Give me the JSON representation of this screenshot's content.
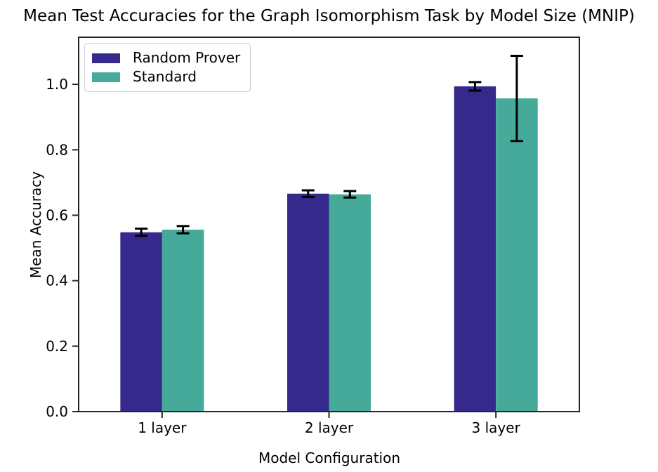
{
  "chart_data": {
    "type": "bar",
    "title": "Mean Test Accuracies for the Graph Isomorphism Task by Model Size (MNIP)",
    "xlabel": "Model Configuration",
    "ylabel": "Mean Accuracy",
    "categories": [
      "1 layer",
      "2 layer",
      "3 layer"
    ],
    "series": [
      {
        "name": "Random Prover",
        "color": "#352a8c",
        "values": [
          0.548,
          0.666,
          0.994
        ],
        "errors": [
          0.011,
          0.01,
          0.013
        ]
      },
      {
        "name": "Standard",
        "color": "#45aa99",
        "values": [
          0.556,
          0.664,
          0.957
        ],
        "errors": [
          0.011,
          0.01,
          0.13
        ]
      }
    ],
    "ylim": [
      0.0,
      1.144
    ],
    "yticks": [
      0.0,
      0.2,
      0.4,
      0.6,
      0.8,
      1.0
    ],
    "ytick_labels": [
      "0.0",
      "0.2",
      "0.4",
      "0.6",
      "0.8",
      "1.0"
    ],
    "legend_position": "upper left",
    "grid": false,
    "error_bar_color": "#000000",
    "axis_color": "#262626",
    "text_color": "#000000",
    "background": "#ffffff"
  }
}
